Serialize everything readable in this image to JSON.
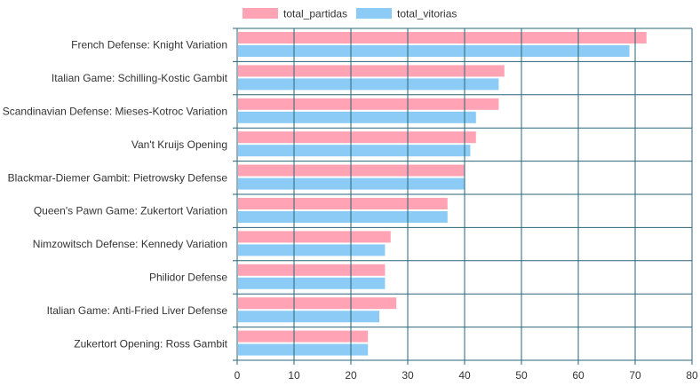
{
  "chart_data": {
    "type": "bar",
    "orientation": "horizontal",
    "categories": [
      "French Defense: Knight Variation",
      "Italian Game: Schilling-Kostic Gambit",
      "Scandinavian Defense: Mieses-Kotroc Variation",
      "Van't Kruijs Opening",
      "Blackmar-Diemer Gambit: Pietrowsky Defense",
      "Queen's Pawn Game: Zukertort Variation",
      "Nimzowitsch Defense: Kennedy Variation",
      "Philidor Defense",
      "Italian Game: Anti-Fried Liver Defense",
      "Zukertort Opening: Ross Gambit"
    ],
    "series": [
      {
        "name": "total_partidas",
        "color": "#ffa3b5",
        "values": [
          72,
          47,
          46,
          42,
          40,
          37,
          27,
          26,
          28,
          23
        ]
      },
      {
        "name": "total_vitorias",
        "color": "#8ccbf5",
        "values": [
          69,
          46,
          42,
          41,
          40,
          37,
          26,
          26,
          25,
          23
        ]
      }
    ],
    "xlim": [
      0,
      80
    ],
    "xticks": [
      0,
      10,
      20,
      30,
      40,
      50,
      60,
      70,
      80
    ],
    "grid": true,
    "grid_color": "#2a6478",
    "legend_position": "top-left"
  }
}
